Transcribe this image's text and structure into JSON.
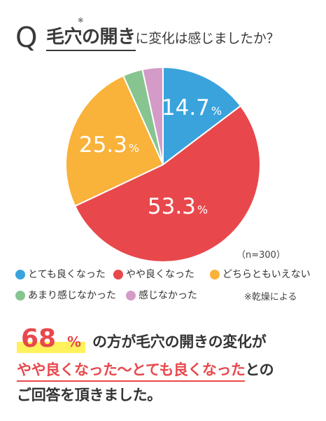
{
  "title": {
    "q_letter": "Q",
    "mark": "※",
    "main": "毛穴の開き",
    "rest": "に変化は感じましたか？"
  },
  "chart_data": {
    "type": "pie",
    "sample_size_label": "（n=300）",
    "unit": "%",
    "series": [
      {
        "name": "とても良くなった",
        "value": 14.7,
        "color": "#3aa3dc",
        "label": "14.7"
      },
      {
        "name": "やや良くなった",
        "value": 53.3,
        "color": "#e8484c",
        "label": "53.3"
      },
      {
        "name": "どちらともいえない",
        "value": 25.3,
        "color": "#f9b23a",
        "label": "25.3"
      },
      {
        "name": "あまり感じなかった",
        "value": 3.3,
        "color": "#86c58f",
        "label": ""
      },
      {
        "name": "感じなかった",
        "value": 3.4,
        "color": "#d49bc8",
        "label": ""
      }
    ]
  },
  "note": "※乾燥による",
  "summary": {
    "percent": "68",
    "percent_symbol": "%",
    "line1": "の方が毛穴の開きの変化が",
    "line2_highlight": "やや良くなった～とても良くなった",
    "line2_tail": "との",
    "line3": "ご回答を頂きました。"
  }
}
